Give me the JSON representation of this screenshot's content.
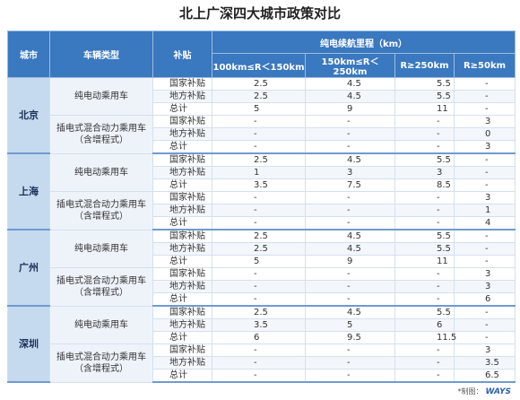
{
  "title": "北上广深四大城市政策对比",
  "header": {
    "city": "城市",
    "vehicle": "车辆类型",
    "subsidy": "补贴",
    "range": "纯电续航里程（km）",
    "ranges": [
      "100km≤R＜150km",
      "150km≤R＜250km",
      "R≥250km",
      "R≥50km"
    ]
  },
  "cities": [
    {
      "name": "北京",
      "groups": [
        {
          "type": "纯电动乘用车",
          "rows": [
            {
              "label": "国家补贴",
              "values": [
                2.5,
                4.5,
                5.5,
                "-"
              ]
            },
            {
              "label": "地方补贴",
              "values": [
                2.5,
                4.5,
                5.5,
                "-"
              ]
            },
            {
              "label": "总计",
              "values": [
                5,
                9,
                11,
                "-"
              ]
            }
          ]
        },
        {
          "type": "插电式混合动力乘用车",
          "note": "（含增程式）",
          "rows": [
            {
              "label": "国家补贴",
              "values": [
                "-",
                "-",
                "-",
                3
              ]
            },
            {
              "label": "地方补贴",
              "values": [
                "-",
                "-",
                "-",
                0
              ]
            },
            {
              "label": "总计",
              "values": [
                "-",
                "-",
                "-",
                3
              ]
            }
          ]
        }
      ]
    },
    {
      "name": "上海",
      "groups": [
        {
          "type": "纯电动乘用车",
          "rows": [
            {
              "label": "国家补贴",
              "values": [
                2.5,
                4.5,
                5.5,
                "-"
              ]
            },
            {
              "label": "地方补贴",
              "values": [
                1,
                3,
                3,
                "-"
              ]
            },
            {
              "label": "总计",
              "values": [
                3.5,
                7.5,
                8.5,
                "-"
              ]
            }
          ]
        },
        {
          "type": "插电式混合动力乘用车",
          "note": "（含增程式）",
          "rows": [
            {
              "label": "国家补贴",
              "values": [
                "-",
                "-",
                "-",
                3
              ]
            },
            {
              "label": "地方补贴",
              "values": [
                "-",
                "-",
                "-",
                1
              ]
            },
            {
              "label": "总计",
              "values": [
                "-",
                "-",
                "-",
                4
              ]
            }
          ]
        }
      ]
    },
    {
      "name": "广州",
      "groups": [
        {
          "type": "纯电动乘用车",
          "rows": [
            {
              "label": "国家补贴",
              "values": [
                2.5,
                4.5,
                5.5,
                "-"
              ]
            },
            {
              "label": "地方补贴",
              "values": [
                2.5,
                4.5,
                5.5,
                "-"
              ]
            },
            {
              "label": "总计",
              "values": [
                5,
                9,
                11,
                "-"
              ]
            }
          ]
        },
        {
          "type": "插电式混合动力乘用车",
          "note": "（含增程式）",
          "rows": [
            {
              "label": "国家补贴",
              "values": [
                "-",
                "-",
                "-",
                3
              ]
            },
            {
              "label": "地方补贴",
              "values": [
                "-",
                "-",
                "-",
                3
              ]
            },
            {
              "label": "总计",
              "values": [
                "-",
                "-",
                "-",
                6
              ]
            }
          ]
        }
      ]
    },
    {
      "name": "深圳",
      "groups": [
        {
          "type": "纯电动乘用车",
          "rows": [
            {
              "label": "国家补贴",
              "values": [
                2.5,
                4.5,
                5.5,
                "-"
              ]
            },
            {
              "label": "地方补贴",
              "values": [
                3.5,
                5,
                6,
                "-"
              ]
            },
            {
              "label": "总计",
              "values": [
                6,
                9.5,
                11.5,
                "-"
              ]
            }
          ]
        },
        {
          "type": "插电式混合动力乘用车",
          "note": "（含增程式）",
          "rows": [
            {
              "label": "国家补贴",
              "values": [
                "-",
                "-",
                "-",
                3
              ]
            },
            {
              "label": "地方补贴",
              "values": [
                "-",
                "-",
                "-",
                3.5
              ]
            },
            {
              "label": "总计",
              "values": [
                "-",
                "-",
                "-",
                6.5
              ]
            }
          ]
        }
      ]
    }
  ],
  "footer": {
    "text": "*制图：",
    "logo": "WAYS"
  }
}
